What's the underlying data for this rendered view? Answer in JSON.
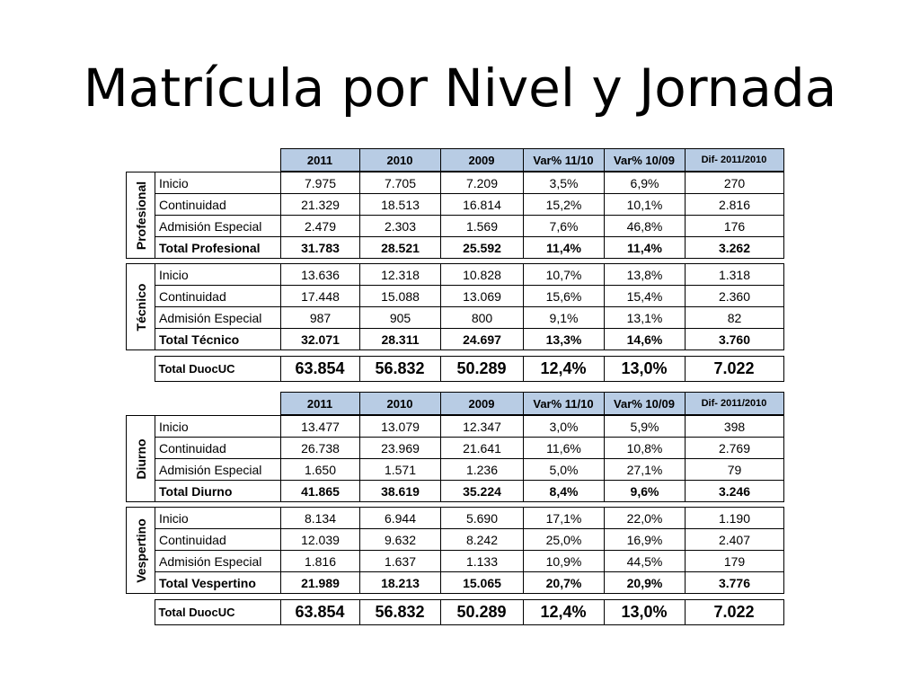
{
  "title": "Matrícula por Nivel y Jornada",
  "header": [
    "2011",
    "2010",
    "2009",
    "Var% 11/10",
    "Var% 10/09",
    "Dif- 2011/2010"
  ],
  "table1": {
    "groups": [
      {
        "side": "Profesional",
        "rows": [
          {
            "label": "Inicio",
            "v": [
              "7.975",
              "7.705",
              "7.209",
              "3,5%",
              "6,9%",
              "270"
            ]
          },
          {
            "label": "Continuidad",
            "v": [
              "21.329",
              "18.513",
              "16.814",
              "15,2%",
              "10,1%",
              "2.816"
            ]
          },
          {
            "label": "Admisión Especial",
            "v": [
              "2.479",
              "2.303",
              "1.569",
              "7,6%",
              "46,8%",
              "176"
            ]
          },
          {
            "label": "Total Profesional",
            "v": [
              "31.783",
              "28.521",
              "25.592",
              "11,4%",
              "11,4%",
              "3.262"
            ]
          }
        ]
      },
      {
        "side": "Técnico",
        "rows": [
          {
            "label": "Inicio",
            "v": [
              "13.636",
              "12.318",
              "10.828",
              "10,7%",
              "13,8%",
              "1.318"
            ]
          },
          {
            "label": "Continuidad",
            "v": [
              "17.448",
              "15.088",
              "13.069",
              "15,6%",
              "15,4%",
              "2.360"
            ]
          },
          {
            "label": "Admisión Especial",
            "v": [
              "987",
              "905",
              "800",
              "9,1%",
              "13,1%",
              "82"
            ]
          },
          {
            "label": "Total Técnico",
            "v": [
              "32.071",
              "28.311",
              "24.697",
              "13,3%",
              "14,6%",
              "3.760"
            ]
          }
        ]
      }
    ],
    "total": {
      "label": "Total DuocUC",
      "v": [
        "63.854",
        "56.832",
        "50.289",
        "12,4%",
        "13,0%",
        "7.022"
      ]
    }
  },
  "table2": {
    "groups": [
      {
        "side": "Diurno",
        "rows": [
          {
            "label": "Inicio",
            "v": [
              "13.477",
              "13.079",
              "12.347",
              "3,0%",
              "5,9%",
              "398"
            ]
          },
          {
            "label": "Continuidad",
            "v": [
              "26.738",
              "23.969",
              "21.641",
              "11,6%",
              "10,8%",
              "2.769"
            ]
          },
          {
            "label": "Admisión Especial",
            "v": [
              "1.650",
              "1.571",
              "1.236",
              "5,0%",
              "27,1%",
              "79"
            ]
          },
          {
            "label": "Total Diurno",
            "v": [
              "41.865",
              "38.619",
              "35.224",
              "8,4%",
              "9,6%",
              "3.246"
            ]
          }
        ]
      },
      {
        "side": "Vespertino",
        "rows": [
          {
            "label": "Inicio",
            "v": [
              "8.134",
              "6.944",
              "5.690",
              "17,1%",
              "22,0%",
              "1.190"
            ]
          },
          {
            "label": "Continuidad",
            "v": [
              "12.039",
              "9.632",
              "8.242",
              "25,0%",
              "16,9%",
              "2.407"
            ]
          },
          {
            "label": "Admisión Especial",
            "v": [
              "1.816",
              "1.637",
              "1.133",
              "10,9%",
              "44,5%",
              "179"
            ]
          },
          {
            "label": "Total Vespertino",
            "v": [
              "21.989",
              "18.213",
              "15.065",
              "20,7%",
              "20,9%",
              "3.776"
            ]
          }
        ]
      }
    ],
    "total": {
      "label": "Total DuocUC",
      "v": [
        "63.854",
        "56.832",
        "50.289",
        "12,4%",
        "13,0%",
        "7.022"
      ]
    }
  }
}
